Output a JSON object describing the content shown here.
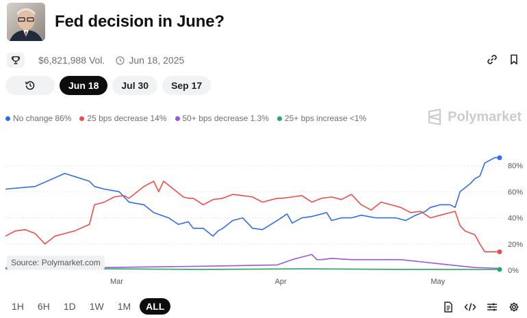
{
  "header": {
    "title": "Fed decision in June?"
  },
  "meta": {
    "volume": "$6,821,988 Vol.",
    "date": "Jun 18, 2025"
  },
  "tabs": {
    "history_icon": "history-icon",
    "dates": [
      {
        "label": "Jun 18",
        "active": true
      },
      {
        "label": "Jul 30",
        "active": false
      },
      {
        "label": "Sep 17",
        "active": false
      }
    ]
  },
  "legend": [
    {
      "label": "No change 86%",
      "color": "#2f6bf0"
    },
    {
      "label": "25 bps decrease 14%",
      "color": "#f04b45"
    },
    {
      "label": "50+ bps decrease 1.3%",
      "color": "#9b55e0"
    },
    {
      "label": "25+ bps increase <1%",
      "color": "#27a862"
    }
  ],
  "brand": "Polymarket",
  "source": "Source: Polymarket.com",
  "range": [
    "1H",
    "6H",
    "1D",
    "1W",
    "1M",
    "ALL"
  ],
  "range_active": "ALL",
  "chart_data": {
    "type": "line",
    "x_labels": [
      "Mar",
      "Apr",
      "May"
    ],
    "y_ticks": [
      "0%",
      "20%",
      "40%",
      "60%",
      "80%"
    ],
    "ylim": [
      0,
      90
    ],
    "grid": true,
    "series": [
      {
        "name": "No change",
        "color": "#2f6bf0",
        "end_marker": true,
        "x": [
          0,
          6,
          12,
          17,
          18,
          20,
          23,
          25,
          28,
          30,
          33,
          35,
          37,
          38,
          40,
          42,
          43,
          44,
          45,
          46,
          48,
          49,
          50,
          52,
          55,
          57,
          58,
          60,
          62,
          63,
          65,
          66,
          68,
          70,
          72,
          75,
          77,
          79,
          80,
          81,
          83,
          85,
          86,
          88,
          90,
          91,
          92,
          94,
          95,
          96,
          97,
          99,
          100
        ],
        "values": [
          62,
          64,
          74,
          68,
          64,
          62,
          60,
          52,
          50,
          44,
          40,
          35,
          37,
          32,
          32,
          26,
          30,
          32,
          35,
          38,
          40,
          36,
          32,
          31,
          38,
          43,
          36,
          40,
          41,
          42,
          44,
          38,
          40,
          40,
          42,
          40,
          40,
          40,
          39,
          38,
          42,
          45,
          48,
          50,
          50,
          48,
          60,
          66,
          70,
          72,
          82,
          86,
          86
        ]
      },
      {
        "name": "25 bps decrease",
        "color": "#f04b45",
        "end_marker": true,
        "x": [
          0,
          2,
          4,
          6,
          8,
          10,
          12,
          14,
          17,
          18,
          20,
          22,
          24,
          25,
          26,
          28,
          30,
          31,
          32,
          34,
          36,
          37,
          38,
          40,
          42,
          44,
          46,
          48,
          50,
          52,
          54,
          55,
          56,
          58,
          60,
          62,
          64,
          66,
          68,
          70,
          72,
          74,
          76,
          78,
          80,
          82,
          84,
          86,
          88,
          90,
          91,
          92,
          93,
          95,
          96,
          97,
          100
        ],
        "values": [
          26,
          30,
          31,
          28,
          20,
          26,
          28,
          30,
          35,
          50,
          52,
          56,
          57,
          55,
          58,
          64,
          68,
          60,
          68,
          62,
          56,
          55,
          55,
          50,
          54,
          55,
          58,
          57,
          56,
          52,
          54,
          55,
          55,
          56,
          57,
          52,
          55,
          56,
          54,
          58,
          50,
          46,
          52,
          50,
          48,
          44,
          45,
          40,
          42,
          44,
          45,
          34,
          30,
          27,
          20,
          14,
          14
        ]
      },
      {
        "name": "50+ bps decrease",
        "color": "#9b55e0",
        "end_marker": false,
        "x": [
          0,
          10,
          20,
          40,
          55,
          58,
          60,
          62,
          63,
          64,
          66,
          70,
          75,
          80,
          85,
          90,
          95,
          100
        ],
        "values": [
          2,
          2,
          2,
          3,
          4,
          8,
          10,
          12,
          8,
          8,
          9,
          8,
          8,
          8,
          6,
          4,
          2,
          1.3
        ]
      },
      {
        "name": "25+ bps increase",
        "color": "#27a862",
        "end_marker": true,
        "x": [
          0,
          20,
          40,
          60,
          80,
          100
        ],
        "values": [
          1,
          1,
          0.6,
          1,
          0.6,
          0.5
        ]
      }
    ]
  }
}
